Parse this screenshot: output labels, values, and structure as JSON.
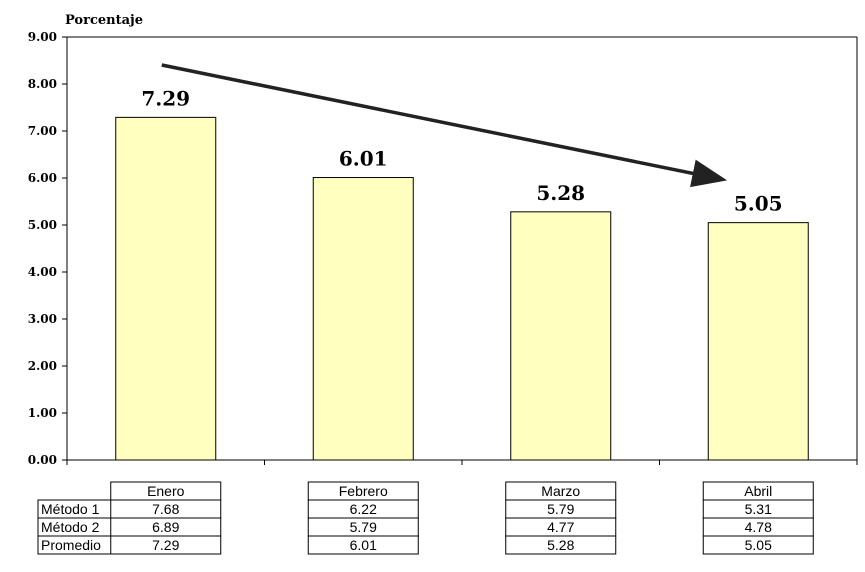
{
  "chart_data": {
    "type": "bar",
    "ylabel": "Porcentaje",
    "ylim": [
      0,
      9
    ],
    "yticks": [
      "0.00",
      "1.00",
      "2.00",
      "3.00",
      "4.00",
      "5.00",
      "6.00",
      "7.00",
      "8.00",
      "9.00"
    ],
    "categories": [
      "Enero",
      "Febrero",
      "Marzo",
      "Abril"
    ],
    "values": [
      7.29,
      6.01,
      5.28,
      5.05
    ],
    "data_labels": [
      "7.29",
      "6.01",
      "5.28",
      "5.05"
    ],
    "bar_color": "#ffffc0",
    "trend_arrow": true,
    "table": {
      "rows": [
        {
          "label": "Método 1",
          "values": [
            "7.68",
            "6.22",
            "5.79",
            "5.31"
          ]
        },
        {
          "label": "Método 2",
          "values": [
            "6.89",
            "5.79",
            "4.77",
            "4.78"
          ]
        },
        {
          "label": "Promedio",
          "values": [
            "7.29",
            "6.01",
            "5.28",
            "5.05"
          ]
        }
      ]
    }
  }
}
